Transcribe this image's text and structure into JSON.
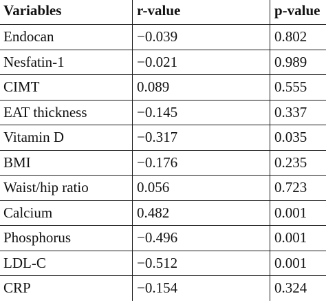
{
  "table": {
    "headers": [
      "Variables",
      "r-value",
      "p-value"
    ],
    "rows": [
      {
        "variable": "Endocan",
        "r": "−0.039",
        "p": "0.802"
      },
      {
        "variable": "Nesfatin-1",
        "r": "−0.021",
        "p": "0.989"
      },
      {
        "variable": "CIMT",
        "r": "0.089",
        "p": "0.555"
      },
      {
        "variable": "EAT thickness",
        "r": "−0.145",
        "p": "0.337"
      },
      {
        "variable": "Vitamin D",
        "r": "−0.317",
        "p": "0.035"
      },
      {
        "variable": "BMI",
        "r": "−0.176",
        "p": "0.235"
      },
      {
        "variable": "Waist/hip ratio",
        "r": "0.056",
        "p": "0.723"
      },
      {
        "variable": "Calcium",
        "r": "0.482",
        "p": "0.001"
      },
      {
        "variable": "Phosphorus",
        "r": "−0.496",
        "p": "0.001"
      },
      {
        "variable": "LDL-C",
        "r": "−0.512",
        "p": "0.001"
      },
      {
        "variable": "CRP",
        "r": "−0.154",
        "p": "0.324"
      }
    ]
  }
}
